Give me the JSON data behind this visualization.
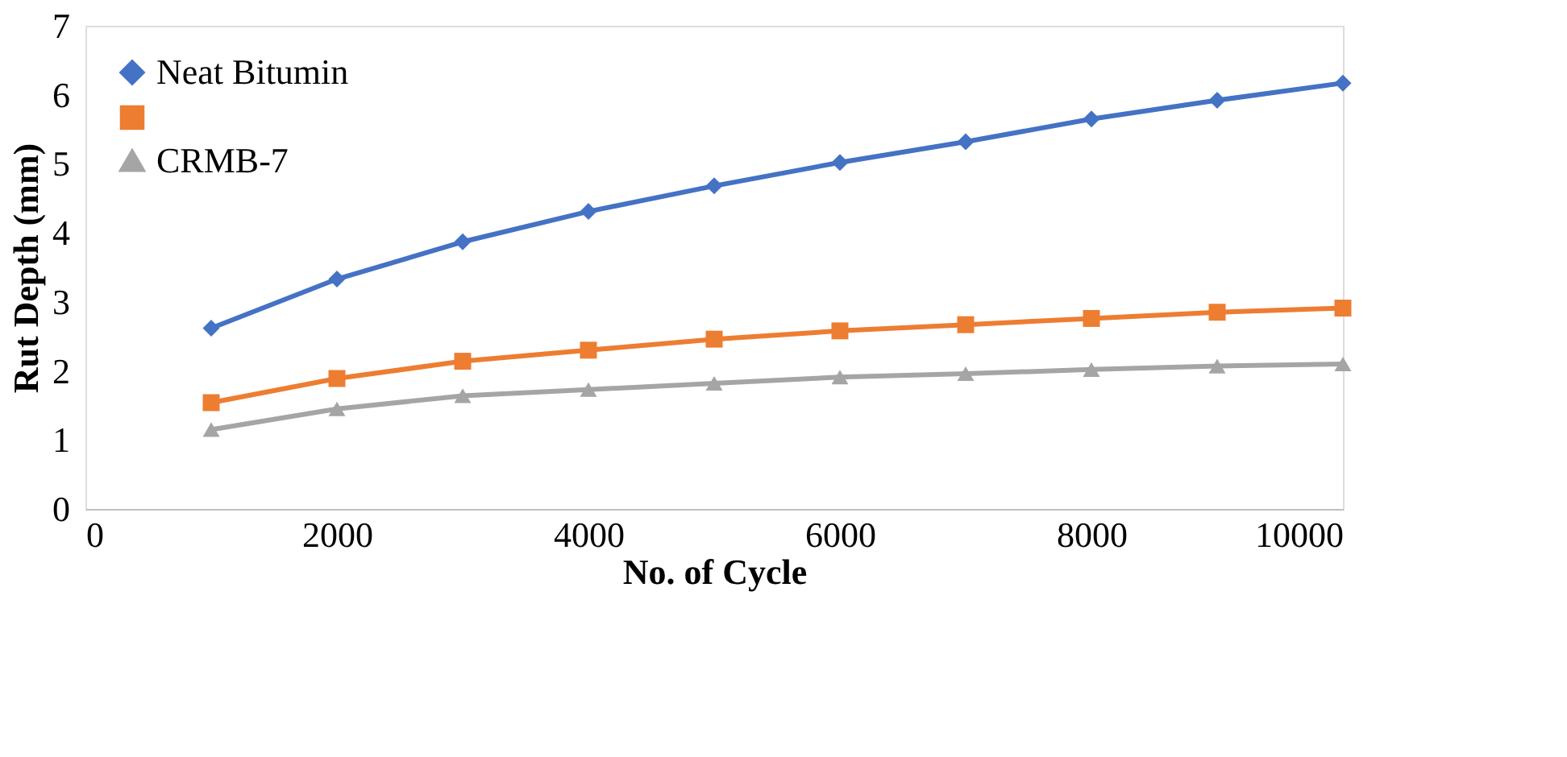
{
  "chart_data": {
    "type": "line",
    "xlabel": "No. of Cycle",
    "ylabel": "Rut Depth (mm)",
    "x": [
      1000,
      2000,
      3000,
      4000,
      5000,
      6000,
      7000,
      8000,
      9000,
      10000
    ],
    "series": [
      {
        "name": "Neat Bitumin",
        "color": "#4472c4",
        "marker": "diamond",
        "values": [
          2.62,
          3.33,
          3.87,
          4.31,
          4.68,
          5.02,
          5.32,
          5.65,
          5.92,
          6.17
        ]
      },
      {
        "color": "#ed7d31",
        "marker": "square",
        "values": [
          1.54,
          1.89,
          2.14,
          2.3,
          2.46,
          2.58,
          2.67,
          2.76,
          2.85,
          2.91
        ]
      },
      {
        "name": "CRMB-7",
        "color": "#a5a5a5",
        "marker": "triangle",
        "values": [
          1.15,
          1.45,
          1.64,
          1.73,
          1.82,
          1.91,
          1.96,
          2.02,
          2.07,
          2.1
        ]
      }
    ],
    "xlim": [
      0,
      10000
    ],
    "xticks": [
      0,
      2000,
      4000,
      6000,
      8000,
      10000
    ],
    "ylim": [
      0,
      7
    ],
    "yticks": [
      0,
      1,
      2,
      3,
      4,
      5,
      6,
      7
    ],
    "grid": false,
    "legend": "top left",
    "line_style": "solid"
  }
}
